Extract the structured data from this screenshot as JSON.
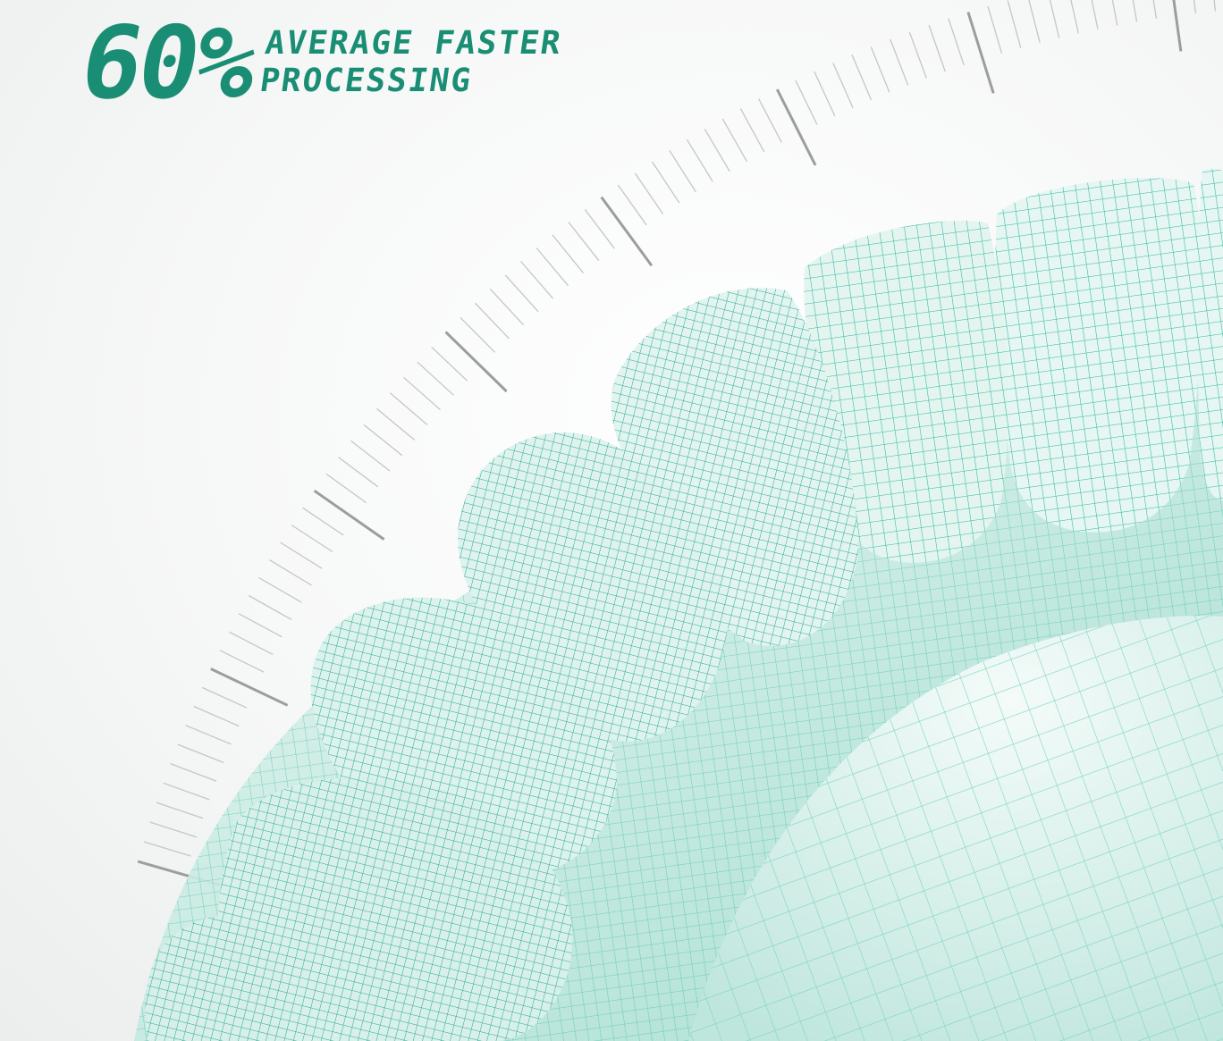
{
  "headline": {
    "stat": "60%",
    "line1": "AVERAGE FASTER",
    "line2": "PROCESSING"
  },
  "colors": {
    "accent": "#1a8e74",
    "mesh": "#2fb8a0",
    "ruler": "#8c9090"
  },
  "illustration": {
    "subject": "wireframe-dental-arch-icon"
  }
}
